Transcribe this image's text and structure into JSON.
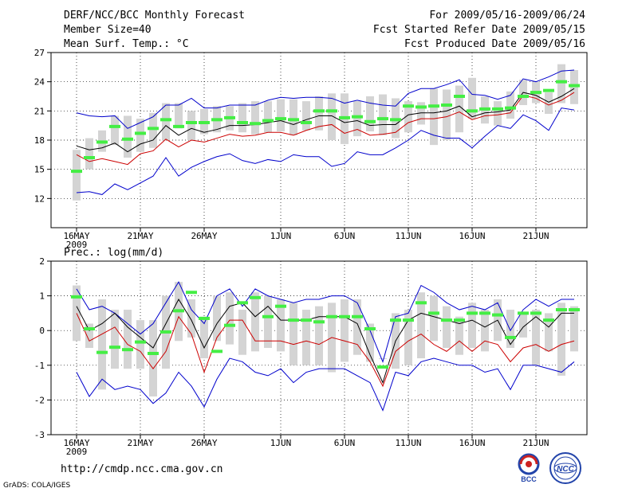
{
  "header": {
    "title": "DERF/NCC/BCC Monthly Forecast",
    "member_size": "Member Size=40",
    "variable1": "Mean Surf. Temp.: °C",
    "period": "For 2009/05/16-2009/06/24",
    "start": "Fcst Started Refer Date 2009/05/15",
    "produced": "Fcst Produced Date 2009/05/16"
  },
  "footer": {
    "url": "http://cmdp.ncc.cma.gov.cn",
    "grads": "GrADS: COLA/IGES",
    "logo_bcc": "BCC",
    "logo_ncc": "NCC"
  },
  "colors": {
    "box": "#d4d4d4",
    "median": "#44ee44",
    "mean": "#000000",
    "upper": "#0000cc",
    "lower": "#cc0000",
    "grid": "#000000"
  },
  "chart_data": [
    {
      "type": "box",
      "title": "Mean Surf. Temp.: °C",
      "ylim": [
        9,
        27
      ],
      "yticks": [
        12,
        15,
        18,
        21,
        24,
        27
      ],
      "x_tick_labels": [
        "16MAY",
        "21MAY",
        "26MAY",
        "1JUN",
        "6JUN",
        "11JUN",
        "16JUN",
        "21JUN"
      ],
      "x_tick_days": [
        1,
        6,
        11,
        17,
        22,
        27,
        32,
        37
      ],
      "year_label": "2009",
      "days": 40,
      "box_low": [
        11.8,
        15.0,
        16.8,
        17.5,
        16.2,
        16.8,
        17.2,
        18.0,
        19.2,
        18.0,
        18.6,
        18.8,
        19.0,
        18.8,
        18.6,
        18.8,
        18.9,
        18.5,
        19.0,
        19.0,
        18.0,
        17.6,
        18.4,
        18.9,
        18.5,
        18.2,
        18.8,
        19.6,
        17.5,
        18.0,
        18.8,
        20.2,
        19.7,
        19.5,
        20.2,
        21.6,
        21.8,
        20.7,
        21.8,
        21.7
      ],
      "box_high": [
        17.0,
        18.2,
        19.0,
        20.5,
        20.5,
        20.2,
        20.8,
        21.8,
        21.8,
        21.0,
        21.2,
        21.5,
        21.5,
        21.8,
        22.0,
        22.0,
        22.2,
        22.2,
        22.0,
        22.5,
        22.8,
        22.8,
        22.0,
        22.5,
        22.7,
        22.3,
        22.0,
        21.9,
        23.3,
        23.2,
        23.6,
        24.4,
        22.5,
        22.0,
        23.0,
        24.2,
        24.0,
        22.9,
        25.8,
        25.2
      ],
      "median": [
        14.8,
        16.2,
        17.8,
        19.4,
        18.1,
        18.7,
        19.2,
        20.1,
        19.4,
        19.8,
        19.8,
        20.1,
        20.3,
        19.8,
        19.7,
        20.0,
        20.2,
        20.1,
        19.8,
        21.0,
        21.0,
        20.3,
        20.4,
        19.9,
        20.2,
        20.1,
        21.5,
        21.4,
        21.5,
        21.6,
        22.5,
        21.0,
        21.2,
        21.2,
        21.3,
        22.5,
        22.9,
        23.1,
        24.0,
        23.6
      ],
      "mean": [
        17.4,
        17.0,
        17.2,
        17.7,
        16.8,
        17.6,
        18.0,
        19.5,
        18.5,
        19.2,
        18.8,
        19.1,
        19.5,
        19.5,
        19.6,
        19.8,
        20.0,
        19.6,
        20.1,
        20.5,
        20.5,
        19.8,
        20.0,
        19.5,
        19.6,
        19.6,
        20.6,
        20.8,
        20.8,
        21.0,
        21.5,
        20.4,
        20.8,
        20.9,
        21.1,
        22.9,
        22.6,
        21.9,
        22.5,
        23.3
      ],
      "upper": [
        20.8,
        20.5,
        20.4,
        20.5,
        19.2,
        19.8,
        20.4,
        21.6,
        21.6,
        22.3,
        21.3,
        21.3,
        21.6,
        21.6,
        21.6,
        22.1,
        22.4,
        22.3,
        22.4,
        22.4,
        22.3,
        21.8,
        22.1,
        21.8,
        21.6,
        21.5,
        22.8,
        23.3,
        23.3,
        23.7,
        24.2,
        22.7,
        22.6,
        22.2,
        22.6,
        24.3,
        24.0,
        24.5,
        25.1,
        25.2
      ],
      "lower": [
        16.5,
        15.8,
        16.1,
        15.8,
        15.5,
        16.6,
        16.9,
        18.1,
        17.3,
        18.0,
        17.8,
        18.2,
        18.6,
        18.4,
        18.5,
        18.8,
        18.8,
        18.5,
        19.0,
        19.4,
        19.6,
        18.7,
        19.1,
        18.5,
        18.6,
        18.8,
        19.8,
        20.2,
        20.2,
        20.4,
        20.9,
        20.1,
        20.5,
        20.6,
        20.8,
        22.6,
        22.3,
        21.6,
        22.1,
        22.9
      ],
      "minline": [
        12.6,
        12.7,
        12.4,
        13.5,
        12.9,
        13.6,
        14.3,
        16.2,
        14.3,
        15.2,
        15.8,
        16.3,
        16.6,
        15.9,
        15.6,
        16.0,
        15.8,
        16.5,
        16.3,
        16.3,
        15.3,
        15.6,
        16.8,
        16.5,
        16.5,
        17.2,
        18.0,
        19.0,
        18.5,
        18.2,
        18.2,
        17.2,
        18.4,
        19.5,
        19.2,
        20.6,
        20.0,
        19.0,
        21.3,
        21.1
      ]
    },
    {
      "type": "box",
      "title": "Prec.: log(mm/d)",
      "ylim": [
        -3,
        2
      ],
      "yticks": [
        -3,
        -2,
        -1,
        0,
        1,
        2
      ],
      "x_tick_labels": [
        "16MAY",
        "21MAY",
        "26MAY",
        "1JUN",
        "6JUN",
        "11JUN",
        "16JUN",
        "21JUN"
      ],
      "x_tick_days": [
        1,
        6,
        11,
        17,
        22,
        27,
        32,
        37
      ],
      "year_label": "2009",
      "days": 40,
      "box_low": [
        -0.3,
        -0.5,
        -1.7,
        -1.1,
        -1.1,
        -1.1,
        -1.9,
        -1.1,
        -0.3,
        -0.2,
        -0.8,
        -0.3,
        -0.4,
        -0.7,
        -0.6,
        -0.5,
        -0.6,
        -1.0,
        -1.0,
        -1.0,
        -1.2,
        -0.9,
        -0.7,
        -0.9,
        -0.8,
        -1.1,
        -1.0,
        -0.8,
        -0.3,
        -0.5,
        -0.7,
        -0.5,
        -0.6,
        -0.3,
        -0.5,
        -0.2,
        -1.0,
        -0.6,
        -1.3,
        -0.6
      ],
      "box_high": [
        1.3,
        0.2,
        0.9,
        0.6,
        0.6,
        0.3,
        0.3,
        1.0,
        1.4,
        0.9,
        0.4,
        1.0,
        1.1,
        0.6,
        1.1,
        1.0,
        0.9,
        0.8,
        0.6,
        0.7,
        0.8,
        0.9,
        0.9,
        0.2,
        -0.8,
        0.5,
        0.6,
        1.1,
        1.0,
        0.7,
        0.4,
        0.8,
        0.6,
        0.9,
        0.6,
        0.5,
        0.6,
        0.5,
        0.8,
        0.7
      ],
      "median": [
        0.97,
        0.05,
        -0.63,
        -0.48,
        -0.55,
        -0.33,
        -0.66,
        -0.04,
        0.57,
        1.1,
        0.35,
        -0.6,
        0.15,
        0.8,
        0.95,
        0.4,
        0.7,
        0.3,
        0.3,
        0.25,
        0.4,
        0.4,
        0.4,
        0.05,
        -1.05,
        0.3,
        0.3,
        0.8,
        0.5,
        0.3,
        0.3,
        0.5,
        0.5,
        0.45,
        -0.2,
        0.5,
        0.5,
        0.3,
        0.6,
        0.6
      ],
      "mean": [
        0.7,
        0.0,
        0.2,
        0.5,
        0.1,
        -0.2,
        -0.5,
        0.2,
        0.9,
        0.3,
        -0.5,
        0.2,
        0.7,
        0.8,
        0.4,
        0.7,
        0.3,
        0.3,
        0.3,
        0.4,
        0.4,
        0.4,
        0.2,
        -0.7,
        -1.5,
        -0.3,
        0.3,
        0.5,
        0.4,
        0.3,
        0.2,
        0.3,
        0.1,
        0.3,
        -0.4,
        0.1,
        0.4,
        0.1,
        0.5,
        0.5
      ],
      "upper": [
        1.2,
        0.6,
        0.7,
        0.5,
        0.2,
        -0.1,
        0.2,
        0.8,
        1.4,
        0.6,
        0.2,
        1.0,
        1.2,
        0.7,
        1.2,
        1.0,
        0.9,
        0.8,
        0.9,
        0.9,
        1.0,
        1.0,
        0.8,
        0.0,
        -0.9,
        0.4,
        0.5,
        1.3,
        1.1,
        0.8,
        0.6,
        0.7,
        0.6,
        0.8,
        0.0,
        0.6,
        0.9,
        0.7,
        0.9,
        0.9
      ],
      "lower": [
        0.5,
        -0.3,
        -0.1,
        0.1,
        -0.4,
        -0.6,
        -1.1,
        -0.6,
        0.4,
        -0.1,
        -1.2,
        -0.2,
        0.3,
        0.3,
        -0.3,
        -0.3,
        -0.3,
        -0.4,
        -0.3,
        -0.4,
        -0.2,
        -0.3,
        -0.4,
        -0.9,
        -1.6,
        -0.6,
        -0.3,
        -0.1,
        -0.4,
        -0.6,
        -0.3,
        -0.6,
        -0.3,
        -0.4,
        -0.9,
        -0.5,
        -0.4,
        -0.6,
        -0.4,
        -0.3
      ],
      "minline": [
        -1.2,
        -1.9,
        -1.4,
        -1.7,
        -1.6,
        -1.7,
        -2.1,
        -1.8,
        -1.2,
        -1.6,
        -2.2,
        -1.4,
        -0.8,
        -0.9,
        -1.2,
        -1.3,
        -1.1,
        -1.5,
        -1.2,
        -1.1,
        -1.1,
        -1.1,
        -1.3,
        -1.5,
        -2.3,
        -1.2,
        -1.3,
        -0.9,
        -0.8,
        -0.9,
        -1.0,
        -1.0,
        -1.2,
        -1.1,
        -1.7,
        -1.0,
        -1.0,
        -1.1,
        -1.2,
        -0.9
      ]
    }
  ]
}
